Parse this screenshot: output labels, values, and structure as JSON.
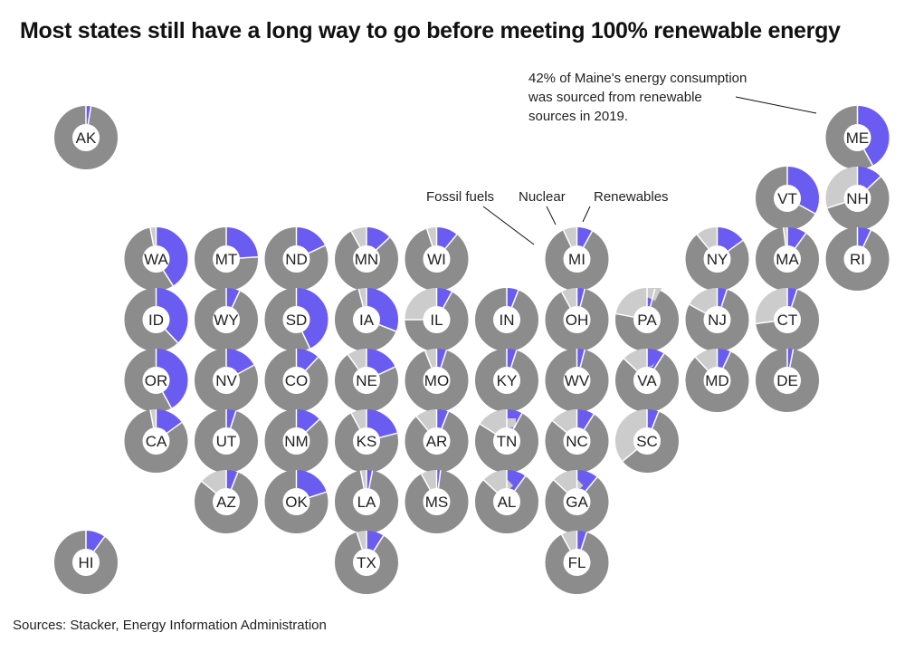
{
  "title": "Most states still have a long way to go before meeting 100% renewable energy",
  "source": "Sources: Stacker, Energy Information Administration",
  "colors": {
    "fossil": "#8c8c8c",
    "nuclear": "#cccccc",
    "renewable": "#6a5cf0"
  },
  "legend": {
    "fossil": "Fossil fuels",
    "nuclear": "Nuclear",
    "renewable": "Renewables"
  },
  "annotation": {
    "lines": [
      "42% of Maine's energy consumption",
      "was sourced from renewable",
      "sources in 2019."
    ]
  },
  "chart_data": {
    "type": "donut-grid",
    "series": [
      "Fossil fuels",
      "Nuclear",
      "Renewables"
    ],
    "states": [
      {
        "abbr": "AK",
        "col": 0,
        "row": 0,
        "fossil": 97.5,
        "nuclear": 0,
        "renewable": 2.5
      },
      {
        "abbr": "ME",
        "col": 11,
        "row": 0,
        "fossil": 58,
        "nuclear": 0,
        "renewable": 42
      },
      {
        "abbr": "VT",
        "col": 10,
        "row": 1,
        "fossil": 67,
        "nuclear": 0,
        "renewable": 33
      },
      {
        "abbr": "NH",
        "col": 11,
        "row": 1,
        "fossil": 57,
        "nuclear": 30,
        "renewable": 13
      },
      {
        "abbr": "WA",
        "col": 1,
        "row": 2,
        "fossil": 56,
        "nuclear": 3,
        "renewable": 41
      },
      {
        "abbr": "MT",
        "col": 2,
        "row": 2,
        "fossil": 76,
        "nuclear": 0,
        "renewable": 24
      },
      {
        "abbr": "ND",
        "col": 3,
        "row": 2,
        "fossil": 82,
        "nuclear": 0,
        "renewable": 18
      },
      {
        "abbr": "MN",
        "col": 4,
        "row": 2,
        "fossil": 79,
        "nuclear": 8,
        "renewable": 13
      },
      {
        "abbr": "WI",
        "col": 5,
        "row": 2,
        "fossil": 84,
        "nuclear": 5,
        "renewable": 11
      },
      {
        "abbr": "MI",
        "col": 7,
        "row": 2,
        "fossil": 85,
        "nuclear": 7,
        "renewable": 8
      },
      {
        "abbr": "NY",
        "col": 9,
        "row": 2,
        "fossil": 74,
        "nuclear": 11,
        "renewable": 15
      },
      {
        "abbr": "MA",
        "col": 10,
        "row": 2,
        "fossil": 88,
        "nuclear": 2,
        "renewable": 10
      },
      {
        "abbr": "RI",
        "col": 11,
        "row": 2,
        "fossil": 93,
        "nuclear": 0,
        "renewable": 7
      },
      {
        "abbr": "ID",
        "col": 1,
        "row": 3,
        "fossil": 62,
        "nuclear": 0,
        "renewable": 38
      },
      {
        "abbr": "WY",
        "col": 2,
        "row": 3,
        "fossil": 93,
        "nuclear": 0,
        "renewable": 7
      },
      {
        "abbr": "SD",
        "col": 3,
        "row": 3,
        "fossil": 57,
        "nuclear": 0,
        "renewable": 43
      },
      {
        "abbr": "IA",
        "col": 4,
        "row": 3,
        "fossil": 65,
        "nuclear": 4,
        "renewable": 31
      },
      {
        "abbr": "IL",
        "col": 5,
        "row": 3,
        "fossil": 67,
        "nuclear": 25,
        "renewable": 8
      },
      {
        "abbr": "IN",
        "col": 6,
        "row": 3,
        "fossil": 94,
        "nuclear": 0,
        "renewable": 6
      },
      {
        "abbr": "OH",
        "col": 7,
        "row": 3,
        "fossil": 88,
        "nuclear": 8,
        "renewable": 4
      },
      {
        "abbr": "PA",
        "col": 8,
        "row": 3,
        "fossil": 74,
        "nuclear": 22,
        "renewable": 4
      },
      {
        "abbr": "NJ",
        "col": 9,
        "row": 3,
        "fossil": 78,
        "nuclear": 17,
        "renewable": 5
      },
      {
        "abbr": "CT",
        "col": 10,
        "row": 3,
        "fossil": 68,
        "nuclear": 27,
        "renewable": 5
      },
      {
        "abbr": "OR",
        "col": 1,
        "row": 4,
        "fossil": 58,
        "nuclear": 0,
        "renewable": 42
      },
      {
        "abbr": "NV",
        "col": 2,
        "row": 4,
        "fossil": 83,
        "nuclear": 0,
        "renewable": 17
      },
      {
        "abbr": "CO",
        "col": 3,
        "row": 4,
        "fossil": 88,
        "nuclear": 0,
        "renewable": 12
      },
      {
        "abbr": "NE",
        "col": 4,
        "row": 4,
        "fossil": 72,
        "nuclear": 10,
        "renewable": 18
      },
      {
        "abbr": "MO",
        "col": 5,
        "row": 4,
        "fossil": 89,
        "nuclear": 6,
        "renewable": 5
      },
      {
        "abbr": "KY",
        "col": 6,
        "row": 4,
        "fossil": 95,
        "nuclear": 0,
        "renewable": 5
      },
      {
        "abbr": "WV",
        "col": 7,
        "row": 4,
        "fossil": 96,
        "nuclear": 0,
        "renewable": 4
      },
      {
        "abbr": "VA",
        "col": 8,
        "row": 4,
        "fossil": 78,
        "nuclear": 13,
        "renewable": 9
      },
      {
        "abbr": "MD",
        "col": 9,
        "row": 4,
        "fossil": 81,
        "nuclear": 12,
        "renewable": 7
      },
      {
        "abbr": "DE",
        "col": 10,
        "row": 4,
        "fossil": 97,
        "nuclear": 0,
        "renewable": 3
      },
      {
        "abbr": "CA",
        "col": 1,
        "row": 5,
        "fossil": 82,
        "nuclear": 3,
        "renewable": 15
      },
      {
        "abbr": "UT",
        "col": 2,
        "row": 5,
        "fossil": 95,
        "nuclear": 0,
        "renewable": 5
      },
      {
        "abbr": "NM",
        "col": 3,
        "row": 5,
        "fossil": 87,
        "nuclear": 0,
        "renewable": 13
      },
      {
        "abbr": "KS",
        "col": 4,
        "row": 5,
        "fossil": 71,
        "nuclear": 8,
        "renewable": 21
      },
      {
        "abbr": "AR",
        "col": 5,
        "row": 5,
        "fossil": 83,
        "nuclear": 11,
        "renewable": 6
      },
      {
        "abbr": "TN",
        "col": 6,
        "row": 5,
        "fossil": 76,
        "nuclear": 16,
        "renewable": 8
      },
      {
        "abbr": "NC",
        "col": 7,
        "row": 5,
        "fossil": 77,
        "nuclear": 14,
        "renewable": 9
      },
      {
        "abbr": "SC",
        "col": 8,
        "row": 5,
        "fossil": 58,
        "nuclear": 36,
        "renewable": 6
      },
      {
        "abbr": "AZ",
        "col": 2,
        "row": 6,
        "fossil": 80,
        "nuclear": 14,
        "renewable": 6
      },
      {
        "abbr": "OK",
        "col": 3,
        "row": 6,
        "fossil": 80,
        "nuclear": 0,
        "renewable": 20
      },
      {
        "abbr": "LA",
        "col": 4,
        "row": 6,
        "fossil": 94,
        "nuclear": 3,
        "renewable": 3
      },
      {
        "abbr": "MS",
        "col": 5,
        "row": 6,
        "fossil": 90,
        "nuclear": 8,
        "renewable": 2
      },
      {
        "abbr": "AL",
        "col": 6,
        "row": 6,
        "fossil": 77,
        "nuclear": 13,
        "renewable": 10
      },
      {
        "abbr": "GA",
        "col": 7,
        "row": 6,
        "fossil": 76,
        "nuclear": 13,
        "renewable": 11
      },
      {
        "abbr": "HI",
        "col": 0,
        "row": 7,
        "fossil": 90,
        "nuclear": 0,
        "renewable": 10
      },
      {
        "abbr": "TX",
        "col": 4,
        "row": 7,
        "fossil": 86,
        "nuclear": 5,
        "renewable": 9
      },
      {
        "abbr": "FL",
        "col": 7,
        "row": 7,
        "fossil": 87,
        "nuclear": 8,
        "renewable": 5
      }
    ]
  }
}
